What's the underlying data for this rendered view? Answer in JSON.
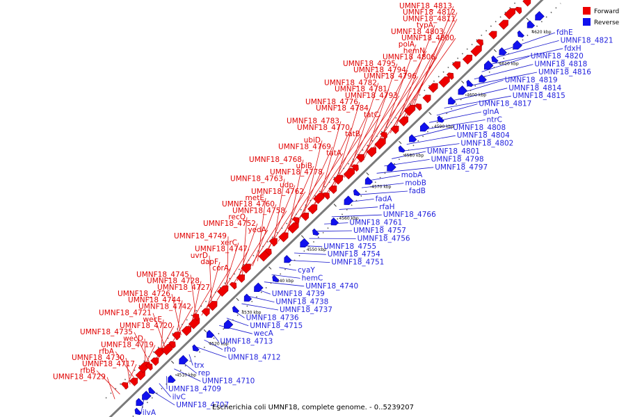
{
  "caption": "Escherichia coli UMNF18, complete genome. - 0..5239207",
  "legend": [
    {
      "label": "Forward",
      "color": "#ee0000"
    },
    {
      "label": "Reverse",
      "color": "#1111ee"
    }
  ],
  "tick_labels": [
    "4510 kbp",
    "4520 kbp",
    "4530 kbp",
    "4540 kbp",
    "4550 kbp",
    "4560 kbp",
    "4570 kbp",
    "4580 kbp",
    "4590 kbp",
    "4600 kbp",
    "4610 kbp",
    "4620 kbp"
  ],
  "forward_labels": [
    "UMNF18_4813",
    "UMNF18_4812",
    "UMNF18_4811",
    "typA",
    "UMNF18_4803",
    "UMNF18_4800",
    "polA",
    "hemN",
    "UMNF18_4806",
    "UMNF18_4795",
    "UMNF18_4794",
    "UMNF18_4796",
    "UMNF18_4782",
    "UMNF18_4781",
    "UMNF18_4793",
    "UMNF18_4776",
    "UMNF18_4784",
    "tatC",
    "UMNF18_4783",
    "UMNF18_4770",
    "tatB",
    "ubiD",
    "UMNF18_4769",
    "tatA",
    "UMNF18_4768",
    "ubiB",
    "UMNF18_4778",
    "UMNF18_4763",
    "udp",
    "UMNF18_4762",
    "metE",
    "UMNF18_4760",
    "UMNF18_4758",
    "recQ",
    "UMNF18_4752",
    "yedA",
    "UMNF18_4749",
    "xerC",
    "UMNF18_4747",
    "uvrD",
    "dapF",
    "corA",
    "UMNF18_4745",
    "UMNF18_4728",
    "UMNF18_4727",
    "UMNF18_4726",
    "UMNF18_4744",
    "UMNF18_4742",
    "UMNF18_4721",
    "wecE",
    "UMNF18_4720",
    "UMNF18_4735",
    "wecD",
    "UMNF18_4719",
    "rfbA",
    "UMNF18_4730",
    "UMNF18_4717",
    "rfbB",
    "UMNF18_4729"
  ],
  "reverse_labels": [
    "fdhE",
    "UMNF18_4821",
    "fdxH",
    "UMNF18_4820",
    "UMNF18_4818",
    "UMNF18_4816",
    "UMNF18_4819",
    "UMNF18_4814",
    "UMNF18_4815",
    "UMNF18_4817",
    "glnA",
    "ntrC",
    "UMNF18_4808",
    "UMNF18_4804",
    "UMNF18_4802",
    "UMNF18_4801",
    "UMNF18_4798",
    "UMNF18_4797",
    "mobA",
    "mobB",
    "fadB",
    "fadA",
    "rfaH",
    "UMNF18_4766",
    "UMNF18_4761",
    "UMNF18_4757",
    "UMNF18_4756",
    "UMNF18_4755",
    "UMNF18_4754",
    "UMNF18_4751",
    "cyaY",
    "hemC",
    "UMNF18_4740",
    "UMNF18_4739",
    "UMNF18_4738",
    "UMNF18_4737",
    "UMNF18_4736",
    "UMNF18_4715",
    "wecA",
    "UMNF18_4713",
    "rho",
    "UMNF18_4712",
    "trx",
    "rep",
    "UMNF18_4710",
    "UMNF18_4709",
    "ilvC",
    "UMNF18_4707",
    "ilvA"
  ]
}
